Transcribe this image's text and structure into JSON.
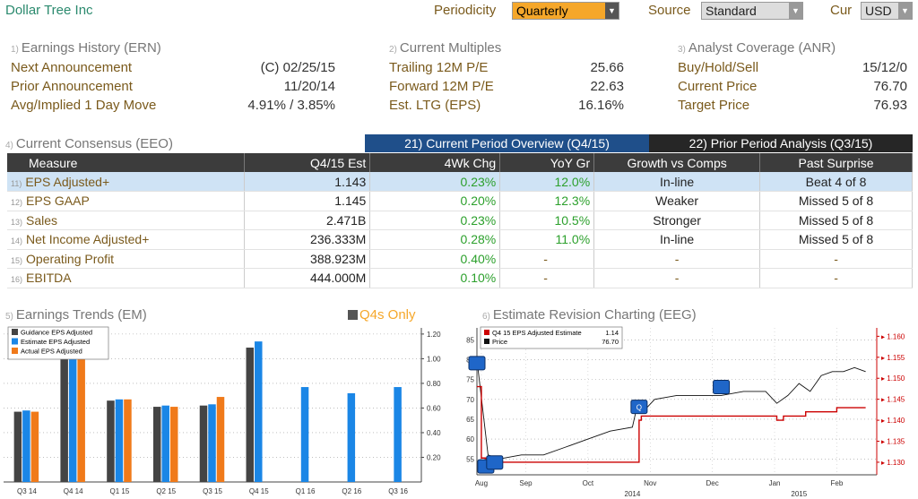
{
  "header": {
    "company": "Dollar Tree Inc",
    "periodicity_label": "Periodicity",
    "periodicity_value": "Quarterly",
    "source_label": "Source",
    "source_value": "Standard",
    "cur_label": "Cur",
    "cur_value": "USD"
  },
  "earnings_history": {
    "num": "1)",
    "title": "Earnings History (ERN)",
    "rows": [
      {
        "label": "Next Announcement",
        "value": "(C)  02/25/15"
      },
      {
        "label": "Prior Announcement",
        "value": "11/20/14"
      },
      {
        "label": "Avg/Implied 1 Day Move",
        "value": "4.91% / 3.85%"
      }
    ]
  },
  "current_multiples": {
    "num": "2)",
    "title": "Current Multiples",
    "rows": [
      {
        "label": "Trailing 12M P/E",
        "value": "25.66"
      },
      {
        "label": "Forward 12M P/E",
        "value": "22.63"
      },
      {
        "label": "Est. LTG (EPS)",
        "value": "16.16%"
      }
    ]
  },
  "analyst_coverage": {
    "num": "3)",
    "title": "Analyst Coverage (ANR)",
    "rows": [
      {
        "label": "Buy/Hold/Sell",
        "value": "15/12/0"
      },
      {
        "label": "Current Price",
        "value": "76.70"
      },
      {
        "label": "Target Price",
        "value": "76.93"
      }
    ]
  },
  "consensus": {
    "num": "4)",
    "title": "Current Consensus (EEO)",
    "tab_current": "21) Current Period Overview (Q4/15)",
    "tab_prior": "22) Prior Period Analysis (Q3/15)",
    "columns": [
      "Measure",
      "Q4/15 Est",
      "4Wk Chg",
      "YoY Gr",
      "Growth vs Comps",
      "Past Surprise"
    ],
    "rows": [
      {
        "idx": "11)",
        "measure": "EPS Adjusted+",
        "est": "1.143",
        "chg": "0.23%",
        "yoy": "12.0%",
        "comps": "In-line",
        "surprise": "Beat 4 of 8"
      },
      {
        "idx": "12)",
        "measure": "EPS GAAP",
        "est": "1.145",
        "chg": "0.20%",
        "yoy": "12.3%",
        "comps": "Weaker",
        "surprise": "Missed 5 of 8"
      },
      {
        "idx": "13)",
        "measure": "Sales",
        "est": "2.471B",
        "chg": "0.23%",
        "yoy": "10.5%",
        "comps": "Stronger",
        "surprise": "Missed 5 of 8"
      },
      {
        "idx": "14)",
        "measure": "Net Income Adjusted+",
        "est": "236.333M",
        "chg": "0.28%",
        "yoy": "11.0%",
        "comps": "In-line",
        "surprise": "Missed 5 of 8"
      },
      {
        "idx": "15)",
        "measure": "Operating Profit",
        "est": "388.923M",
        "chg": "0.40%",
        "yoy": "-",
        "comps": "-",
        "surprise": "-"
      },
      {
        "idx": "16)",
        "measure": "EBITDA",
        "est": "444.000M",
        "chg": "0.10%",
        "yoy": "-",
        "comps": "-",
        "surprise": "-"
      }
    ]
  },
  "trends_panel": {
    "num": "5)",
    "title": "Earnings Trends (EM)",
    "q4s_only": "Q4s Only"
  },
  "revision_panel": {
    "num": "6)",
    "title": "Estimate Revision Charting (EEG)"
  },
  "chart_data": [
    {
      "type": "bar",
      "categories": [
        "Q3 14",
        "Q4 14",
        "Q1 15",
        "Q2 15",
        "Q3 15",
        "Q4 15",
        "Q1 16",
        "Q2 16",
        "Q3 16"
      ],
      "series": [
        {
          "name": "Guidance EPS Adjusted",
          "color": "#444444",
          "values": [
            0.57,
            1.03,
            0.66,
            0.61,
            0.62,
            1.09,
            null,
            null,
            null
          ]
        },
        {
          "name": "Estimate EPS Adjusted",
          "color": "#1a86e6",
          "values": [
            0.58,
            1.04,
            0.67,
            0.62,
            0.63,
            1.14,
            0.77,
            0.72,
            0.77
          ]
        },
        {
          "name": "Actual EPS Adjusted",
          "color": "#f07a1a",
          "values": [
            0.57,
            1.03,
            0.67,
            0.61,
            0.69,
            null,
            null,
            null,
            null
          ]
        }
      ],
      "yticks": [
        "0.20",
        "0.40",
        "0.60",
        "0.80",
        "1.00",
        "1.20"
      ],
      "ylim": [
        0.0,
        1.25
      ],
      "legend": "top-left",
      "grid": true
    },
    {
      "type": "line",
      "legend_title": "Q4 15 EPS Adjusted Estimate",
      "legend_value_est": "1.14",
      "legend_price_label": "Price",
      "legend_value_price": "76.70",
      "left_yticks": [
        "55",
        "60",
        "65",
        "70",
        "75",
        "80",
        "85"
      ],
      "left_ylim": [
        51,
        88
      ],
      "right_yticks": [
        "1.130",
        "1.135",
        "1.140",
        "1.145",
        "1.150",
        "1.155",
        "1.160"
      ],
      "right_ylim": [
        1.127,
        1.162
      ],
      "xticks": [
        "Aug",
        "Sep",
        "Oct",
        "Nov",
        "Dec",
        "Jan",
        "Feb"
      ],
      "xyears": [
        "2014",
        "2015"
      ],
      "series": [
        {
          "name": "Q4 15 EPS Adjusted Estimate",
          "color": "#cc0000",
          "x": [
            0,
            0.02,
            0.04,
            0.1,
            0.2,
            0.3,
            0.4,
            0.5,
            0.6,
            0.7,
            0.72,
            0.73,
            0.74,
            0.76,
            0.8,
            0.9,
            1.0,
            1.1,
            1.2,
            1.3,
            1.35,
            1.37,
            1.38,
            1.4,
            1.45,
            1.48,
            1.5,
            1.6,
            1.62,
            1.7,
            1.75
          ],
          "y": [
            1.148,
            1.131,
            1.13,
            1.13,
            1.13,
            1.13,
            1.13,
            1.13,
            1.13,
            1.13,
            1.13,
            1.14,
            1.141,
            1.141,
            1.141,
            1.141,
            1.141,
            1.141,
            1.141,
            1.141,
            1.14,
            1.14,
            1.141,
            1.141,
            1.141,
            1.142,
            1.142,
            1.142,
            1.143,
            1.143,
            1.143
          ]
        },
        {
          "name": "Price",
          "color": "#111111",
          "x": [
            0,
            0.05,
            0.1,
            0.2,
            0.3,
            0.4,
            0.5,
            0.6,
            0.7,
            0.72,
            0.75,
            0.8,
            0.9,
            1.0,
            1.1,
            1.2,
            1.3,
            1.35,
            1.4,
            1.45,
            1.5,
            1.55,
            1.6,
            1.65,
            1.7,
            1.75
          ],
          "y": [
            80,
            56,
            55,
            56,
            56,
            58,
            60,
            62,
            63,
            68,
            67,
            70,
            71,
            71,
            71,
            72,
            72,
            69,
            71,
            74,
            72,
            76,
            77,
            77,
            78,
            77
          ]
        }
      ],
      "markers": [
        {
          "label": "",
          "x": 0.0,
          "y": 79
        },
        {
          "label": "",
          "x": 0.04,
          "y": 53
        },
        {
          "label": "",
          "x": 0.08,
          "y": 54
        },
        {
          "label": "Q",
          "x": 0.73,
          "y": 68
        },
        {
          "label": "",
          "x": 1.1,
          "y": 73
        }
      ]
    }
  ]
}
